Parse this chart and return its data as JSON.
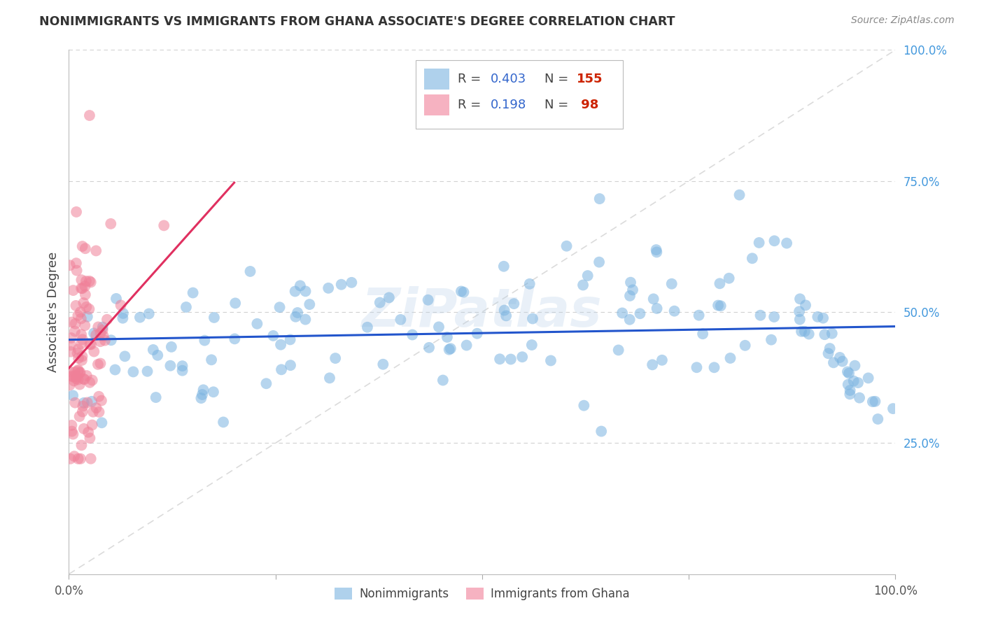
{
  "title": "NONIMMIGRANTS VS IMMIGRANTS FROM GHANA ASSOCIATE'S DEGREE CORRELATION CHART",
  "source": "Source: ZipAtlas.com",
  "ylabel": "Associate's Degree",
  "blue_scatter_color": "#7ab3e0",
  "pink_scatter_color": "#f08098",
  "blue_line_color": "#2255cc",
  "pink_line_color": "#e03060",
  "diag_color": "#cccccc",
  "legend_box_color": "#a8c8f0",
  "legend_box_pink": "#f4a0b0",
  "legend_R_color": "#3366cc",
  "legend_N_color": "#cc2200",
  "yaxis_label_color": "#4499dd",
  "watermark": "ZiPatlas",
  "background_color": "#ffffff",
  "grid_color": "#cccccc",
  "seed": 42,
  "nonimmigrant_n": 155,
  "immigrant_n": 98,
  "nonimmigrant_R": 0.403,
  "immigrant_R": 0.198,
  "xlim": [
    0,
    1
  ],
  "ylim": [
    0,
    1
  ],
  "yticks": [
    0.25,
    0.5,
    0.75,
    1.0
  ],
  "ytick_labels": [
    "25.0%",
    "50.0%",
    "75.0%",
    "100.0%"
  ],
  "xtick_labels_show": [
    "0.0%",
    "100.0%"
  ]
}
